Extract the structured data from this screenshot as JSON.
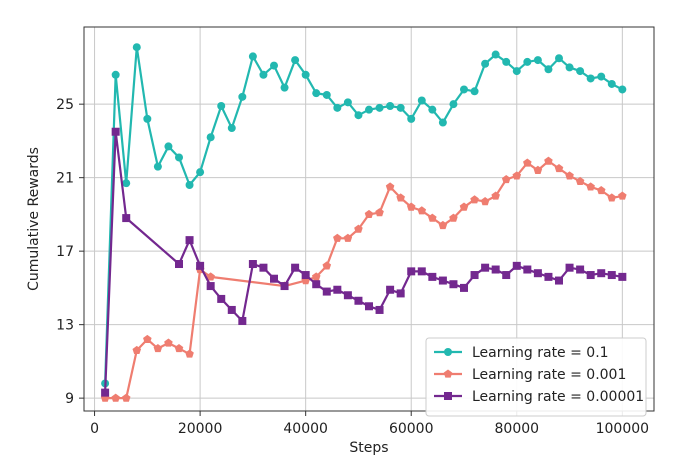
{
  "chart_data": {
    "type": "line",
    "title": "",
    "xlabel": "Steps",
    "ylabel": "Cumulative Rewards",
    "xlim": [
      -2000,
      106000
    ],
    "ylim": [
      8.3,
      29.2
    ],
    "xticks": [
      0,
      20000,
      40000,
      60000,
      80000,
      100000
    ],
    "yticks": [
      9,
      13,
      17,
      21,
      25
    ],
    "grid": true,
    "legend_position": "bottom-right",
    "series": [
      {
        "name": "Learning rate = 0.1",
        "color": "#22b8b0",
        "marker": "circle",
        "x": [
          2000,
          4000,
          6000,
          8000,
          10000,
          12000,
          14000,
          16000,
          18000,
          20000,
          22000,
          24000,
          26000,
          28000,
          30000,
          32000,
          34000,
          36000,
          38000,
          40000,
          42000,
          44000,
          46000,
          48000,
          50000,
          52000,
          54000,
          56000,
          58000,
          60000,
          62000,
          64000,
          66000,
          68000,
          70000,
          72000,
          74000,
          76000,
          78000,
          80000,
          82000,
          84000,
          86000,
          88000,
          90000,
          92000,
          94000,
          96000,
          98000,
          100000
        ],
        "y": [
          9.8,
          26.6,
          20.7,
          28.1,
          24.2,
          21.6,
          22.7,
          22.1,
          20.6,
          21.3,
          23.2,
          24.9,
          23.7,
          25.4,
          27.6,
          26.6,
          27.1,
          25.9,
          27.4,
          26.6,
          25.6,
          25.5,
          24.8,
          25.1,
          24.4,
          24.7,
          24.8,
          24.9,
          24.8,
          24.2,
          25.2,
          24.7,
          24.0,
          25.0,
          25.8,
          25.7,
          27.2,
          27.7,
          27.3,
          26.8,
          27.3,
          27.4,
          26.9,
          27.5,
          27.0,
          26.8,
          26.4,
          26.5,
          26.1,
          25.8
        ]
      },
      {
        "name": "Learning rate = 0.001",
        "color": "#ef7d70",
        "marker": "pentagon",
        "x": [
          2000,
          4000,
          6000,
          8000,
          10000,
          12000,
          14000,
          16000,
          18000,
          20000,
          22000,
          36000,
          40000,
          42000,
          44000,
          46000,
          48000,
          50000,
          52000,
          54000,
          56000,
          58000,
          60000,
          62000,
          64000,
          66000,
          68000,
          70000,
          72000,
          74000,
          76000,
          78000,
          80000,
          82000,
          84000,
          86000,
          88000,
          90000,
          92000,
          94000,
          96000,
          98000,
          100000
        ],
        "y": [
          9.0,
          9.0,
          9.0,
          11.6,
          12.2,
          11.7,
          12.0,
          11.7,
          11.4,
          16.0,
          15.6,
          15.1,
          15.4,
          15.6,
          16.2,
          17.7,
          17.7,
          18.2,
          19.0,
          19.1,
          20.5,
          19.9,
          19.4,
          19.2,
          18.8,
          18.4,
          18.8,
          19.4,
          19.8,
          19.7,
          20.0,
          20.9,
          21.1,
          21.8,
          21.4,
          21.9,
          21.5,
          21.1,
          20.8,
          20.5,
          20.3,
          19.9,
          20.0
        ]
      },
      {
        "name": "Learning rate = 0.00001",
        "color": "#73288f",
        "marker": "square",
        "x": [
          2000,
          4000,
          6000,
          16000,
          18000,
          20000,
          22000,
          24000,
          26000,
          28000,
          30000,
          32000,
          34000,
          36000,
          38000,
          40000,
          42000,
          44000,
          46000,
          48000,
          50000,
          52000,
          54000,
          56000,
          58000,
          60000,
          62000,
          64000,
          66000,
          68000,
          70000,
          72000,
          74000,
          76000,
          78000,
          80000,
          82000,
          84000,
          86000,
          88000,
          90000,
          92000,
          94000,
          96000,
          98000,
          100000
        ],
        "y": [
          9.3,
          23.5,
          18.8,
          16.3,
          17.6,
          16.2,
          15.1,
          14.4,
          13.8,
          13.2,
          16.3,
          16.1,
          15.5,
          15.1,
          16.1,
          15.7,
          15.2,
          14.8,
          14.9,
          14.6,
          14.3,
          14.0,
          13.8,
          14.9,
          14.7,
          15.9,
          15.9,
          15.6,
          15.4,
          15.2,
          15.0,
          15.7,
          16.1,
          16.0,
          15.7,
          16.2,
          16.0,
          15.8,
          15.6,
          15.4,
          16.1,
          16.0,
          15.7,
          15.8,
          15.7,
          15.6
        ]
      }
    ]
  }
}
